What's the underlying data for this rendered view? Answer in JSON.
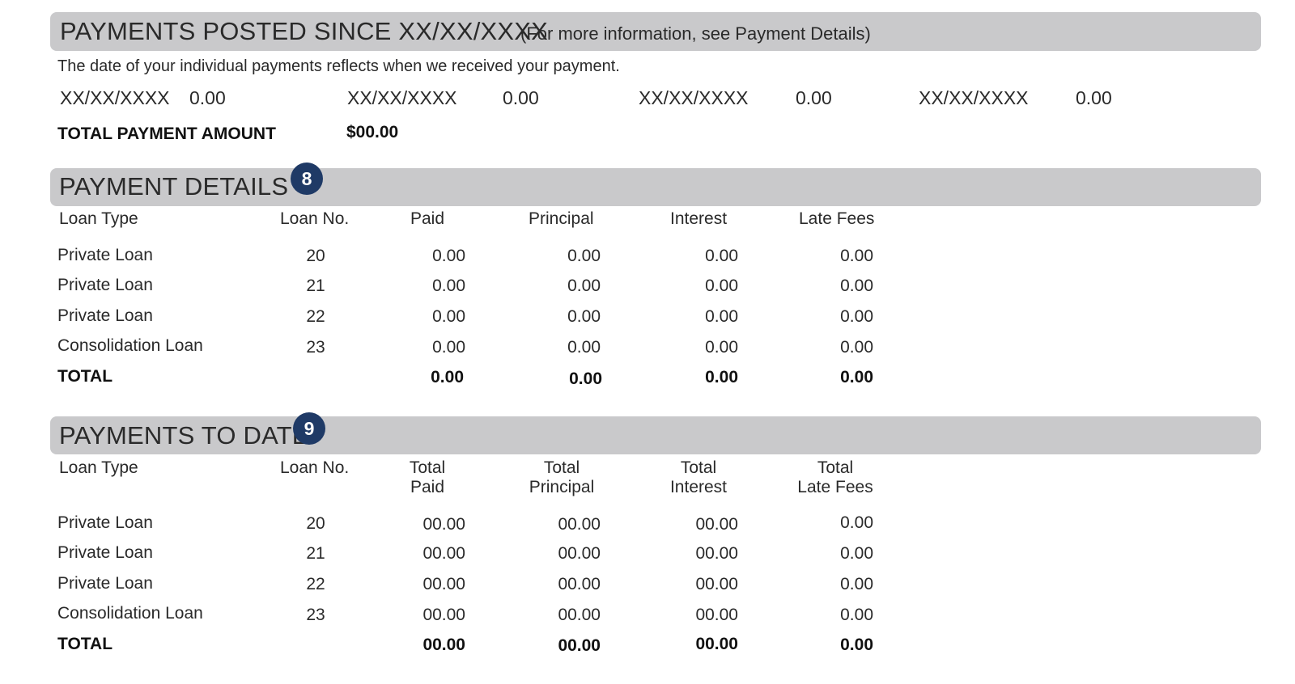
{
  "posted": {
    "title": "PAYMENTS POSTED SINCE XX/XX/XXXX",
    "subtitle": "(For more information, see Payment Details)",
    "note": "The date of your individual payments reflects when we received your payment.",
    "entries": [
      {
        "date": "XX/XX/XXXX",
        "amount": "0.00"
      },
      {
        "date": "XX/XX/XXXX",
        "amount": "0.00"
      },
      {
        "date": "XX/XX/XXXX",
        "amount": "0.00"
      },
      {
        "date": "XX/XX/XXXX",
        "amount": "0.00"
      }
    ],
    "total_label": "TOTAL PAYMENT AMOUNT",
    "total_value": "$00.00"
  },
  "details": {
    "title": "PAYMENT DETAILS",
    "badge": "8",
    "columns": [
      "Loan Type",
      "Loan No.",
      "Paid",
      "Principal",
      "Interest",
      "Late Fees"
    ],
    "rows": [
      [
        "Private  Loan",
        "20",
        "0.00",
        "0.00",
        "0.00",
        "0.00"
      ],
      [
        "Private  Loan",
        "21",
        "0.00",
        "0.00",
        "0.00",
        "0.00"
      ],
      [
        "Private Loan",
        "22",
        "0.00",
        "0.00",
        "0.00",
        "0.00"
      ],
      [
        "Consolidation Loan",
        "23",
        "0.00",
        "0.00",
        "0.00",
        "0.00"
      ]
    ],
    "total": [
      "TOTAL",
      "",
      "0.00",
      "0.00",
      "0.00",
      "0.00"
    ]
  },
  "to_date": {
    "title": "PAYMENTS TO DATE",
    "badge": "9",
    "columns": [
      [
        "Loan Type"
      ],
      [
        "Loan No."
      ],
      [
        "Total",
        "Paid"
      ],
      [
        "Total",
        "Principal"
      ],
      [
        "Total",
        "Interest"
      ],
      [
        "Total",
        "Late Fees"
      ]
    ],
    "rows": [
      [
        "Private  Loan",
        "20",
        "00.00",
        "00.00",
        "00.00",
        "0.00"
      ],
      [
        "Private  Loan",
        "21",
        "00.00",
        "00.00",
        "00.00",
        "0.00"
      ],
      [
        "Private Loan",
        "22",
        "00.00",
        "00.00",
        "00.00",
        "0.00"
      ],
      [
        "Consolidation Loan",
        "23",
        "00.00",
        "00.00",
        "00.00",
        "0.00"
      ]
    ],
    "total": [
      "TOTAL",
      "",
      "00.00",
      "00.00",
      "00.00",
      "0.00"
    ]
  }
}
